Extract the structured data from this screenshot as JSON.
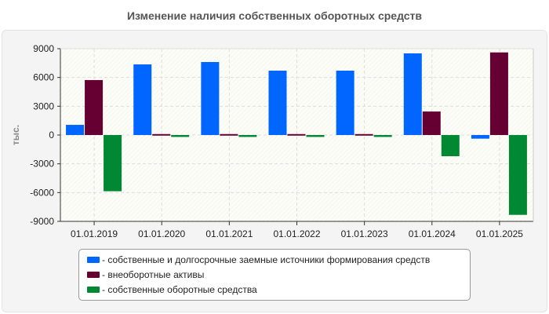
{
  "chart_data": {
    "type": "bar",
    "title": "Изменение наличия собственных оборотных средств",
    "ylabel": "тыс.",
    "xlabel": "",
    "ylim": [
      -9000,
      9000
    ],
    "yticks": [
      9000,
      6000,
      3000,
      0,
      -3000,
      -6000,
      -9000
    ],
    "grid": true,
    "legend_position": "bottom",
    "categories": [
      "01.01.2019",
      "01.01.2020",
      "01.01.2021",
      "01.01.2022",
      "01.01.2023",
      "01.01.2024",
      "01.01.2025"
    ],
    "series": [
      {
        "name": "- собственные и долгосрочные заемные источники формирования средств",
        "color": "#0066ff",
        "values": [
          1060,
          7360,
          7610,
          6710,
          6710,
          8510,
          -380
        ]
      },
      {
        "name": "- внеоборотные активы",
        "color": "#660033",
        "values": [
          5730,
          100,
          100,
          100,
          100,
          2450,
          8610
        ]
      },
      {
        "name": "- собственные оборотные средства",
        "color": "#008833",
        "values": [
          -5860,
          -200,
          -200,
          -200,
          -200,
          -2210,
          -8320
        ]
      }
    ]
  }
}
